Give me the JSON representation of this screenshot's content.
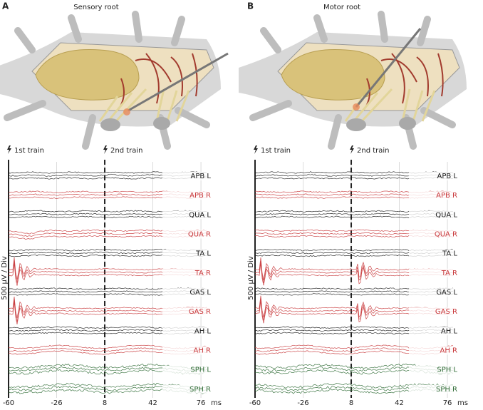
{
  "panels": [
    {
      "letter": "A",
      "title": "Sensory root"
    },
    {
      "letter": "B",
      "title": "Motor root"
    }
  ],
  "trains": [
    {
      "label": "1st train",
      "time": -60
    },
    {
      "label": "2nd train",
      "time": 8
    }
  ],
  "channels": [
    {
      "name": "APB L",
      "color": "#1a1a1a"
    },
    {
      "name": "APB R",
      "color": "#c8373a"
    },
    {
      "name": "QUA L",
      "color": "#1a1a1a"
    },
    {
      "name": "QUA R",
      "color": "#c8373a"
    },
    {
      "name": "TA L",
      "color": "#1a1a1a"
    },
    {
      "name": "TA R",
      "color": "#c8373a"
    },
    {
      "name": "GAS L",
      "color": "#1a1a1a"
    },
    {
      "name": "GAS R",
      "color": "#c8373a"
    },
    {
      "name": "AH L",
      "color": "#1a1a1a"
    },
    {
      "name": "AH R",
      "color": "#c8373a"
    },
    {
      "name": "SPH L",
      "color": "#2f6b35"
    },
    {
      "name": "SPH R",
      "color": "#2f6b35"
    }
  ],
  "ylabel": "500 µV / Div",
  "xunit": "ms",
  "xlim": [
    -60,
    80
  ],
  "xticks": [
    -60,
    -26,
    8,
    42,
    76
  ]
}
